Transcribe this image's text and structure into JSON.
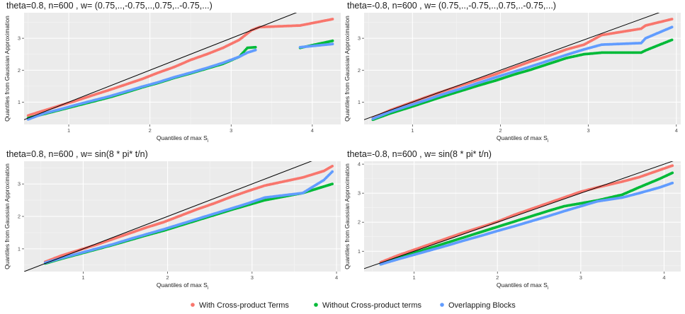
{
  "legend": {
    "entries": [
      {
        "label": "With Cross-product Terms",
        "color": "#F8766D"
      },
      {
        "label": "Without Cross-product terms",
        "color": "#00BA38"
      },
      {
        "label": "Overlapping Blocks",
        "color": "#619CFF"
      }
    ],
    "position": "bottom"
  },
  "chart_data": [
    {
      "type": "scatter",
      "title": "theta=0.8, n=600 , w= (0.75,..,-0.75,..,0.75,..-0.75,...)",
      "xlabel_main": "Quantiles of max S",
      "xlabel_sub": "i",
      "ylabel": "Quantiles from Gaussian Approximation",
      "xlim": [
        0.45,
        4.35
      ],
      "ylim": [
        0.3,
        3.8
      ],
      "xticks": [
        1,
        2,
        3,
        4
      ],
      "yticks": [
        1,
        2,
        3
      ],
      "grid": true,
      "reference_line": "y = x",
      "series": [
        {
          "name": "With Cross-product Terms",
          "color": "#F8766D",
          "x": [
            0.5,
            0.7,
            0.9,
            1.1,
            1.3,
            1.5,
            1.7,
            1.9,
            2.1,
            2.3,
            2.5,
            2.7,
            2.9,
            3.1,
            3.25,
            3.35,
            3.85,
            4.25
          ],
          "y": [
            0.58,
            0.74,
            0.9,
            1.05,
            1.22,
            1.38,
            1.55,
            1.72,
            1.92,
            2.1,
            2.32,
            2.5,
            2.7,
            2.95,
            3.25,
            3.35,
            3.4,
            3.6
          ]
        },
        {
          "name": "Without Cross-product terms",
          "color": "#00BA38",
          "x": [
            0.5,
            0.7,
            0.9,
            1.1,
            1.3,
            1.5,
            1.7,
            1.9,
            2.1,
            2.3,
            2.5,
            2.7,
            2.9,
            3.1,
            3.2,
            3.3,
            3.85,
            4.25
          ],
          "y": [
            0.5,
            0.63,
            0.76,
            0.89,
            1.02,
            1.15,
            1.3,
            1.46,
            1.6,
            1.76,
            1.9,
            2.05,
            2.2,
            2.42,
            2.7,
            2.72,
            2.7,
            2.92
          ]
        },
        {
          "name": "Overlapping Blocks",
          "color": "#619CFF",
          "x": [
            0.5,
            0.7,
            0.9,
            1.1,
            1.3,
            1.5,
            1.7,
            1.9,
            2.1,
            2.3,
            2.5,
            2.7,
            2.9,
            3.1,
            3.2,
            3.3,
            3.85,
            4.25
          ],
          "y": [
            0.46,
            0.65,
            0.78,
            0.92,
            1.05,
            1.18,
            1.33,
            1.48,
            1.62,
            1.78,
            1.92,
            2.07,
            2.23,
            2.42,
            2.55,
            2.63,
            2.72,
            2.82
          ]
        }
      ]
    },
    {
      "type": "scatter",
      "title": "theta=-0.8, n=600 , w= (0.75,..,-0.75,..,0.75,..-0.75,...)",
      "xlabel_main": "Quantiles of max S",
      "xlabel_sub": "i",
      "ylabel": "Quantiles from Gaussian Approximation",
      "xlim": [
        0.45,
        4.05
      ],
      "ylim": [
        0.3,
        3.8
      ],
      "xticks": [
        1,
        2,
        3,
        4
      ],
      "yticks": [
        1,
        2,
        3
      ],
      "grid": true,
      "reference_line": "y = x",
      "series": [
        {
          "name": "With Cross-product Terms",
          "color": "#F8766D",
          "x": [
            0.55,
            0.75,
            0.95,
            1.15,
            1.35,
            1.55,
            1.75,
            1.95,
            2.15,
            2.35,
            2.55,
            2.75,
            2.95,
            3.15,
            3.6,
            3.65,
            3.95
          ],
          "y": [
            0.5,
            0.75,
            0.95,
            1.15,
            1.34,
            1.52,
            1.7,
            1.88,
            2.08,
            2.28,
            2.45,
            2.65,
            2.8,
            3.1,
            3.3,
            3.4,
            3.6
          ]
        },
        {
          "name": "Without Cross-product terms",
          "color": "#00BA38",
          "x": [
            0.55,
            0.75,
            0.95,
            1.15,
            1.35,
            1.55,
            1.75,
            1.95,
            2.15,
            2.35,
            2.55,
            2.75,
            2.95,
            3.15,
            3.6,
            3.65,
            3.95
          ],
          "y": [
            0.45,
            0.65,
            0.82,
            1.0,
            1.18,
            1.35,
            1.52,
            1.68,
            1.86,
            2.02,
            2.2,
            2.38,
            2.5,
            2.55,
            2.55,
            2.62,
            2.95
          ]
        },
        {
          "name": "Overlapping Blocks",
          "color": "#619CFF",
          "x": [
            0.55,
            0.75,
            0.95,
            1.15,
            1.35,
            1.55,
            1.75,
            1.95,
            2.15,
            2.35,
            2.55,
            2.75,
            2.95,
            3.15,
            3.6,
            3.65,
            3.95
          ],
          "y": [
            0.48,
            0.7,
            0.88,
            1.06,
            1.25,
            1.42,
            1.6,
            1.78,
            1.95,
            2.12,
            2.3,
            2.48,
            2.65,
            2.8,
            2.85,
            3.0,
            3.35
          ]
        }
      ]
    },
    {
      "type": "scatter",
      "title": "theta=0.8, n=600 , w= sin(8 * pi* t/n)",
      "xlabel_main": "Quantiles of max S",
      "xlabel_sub": "i",
      "ylabel": "Quantiles from Gaussian Approximation",
      "xlim": [
        0.3,
        4.05
      ],
      "ylim": [
        0.3,
        3.7
      ],
      "xticks": [
        1,
        2,
        3,
        4
      ],
      "yticks": [
        1,
        2,
        3
      ],
      "grid": true,
      "reference_line": "y = x",
      "series": [
        {
          "name": "With Cross-product Terms",
          "color": "#F8766D",
          "x": [
            0.55,
            0.75,
            0.95,
            1.15,
            1.35,
            1.55,
            1.75,
            1.95,
            2.15,
            2.35,
            2.55,
            2.75,
            2.95,
            3.15,
            3.6,
            3.85,
            3.95
          ],
          "y": [
            0.6,
            0.8,
            0.96,
            1.12,
            1.3,
            1.48,
            1.66,
            1.82,
            2.02,
            2.22,
            2.4,
            2.6,
            2.78,
            2.95,
            3.2,
            3.4,
            3.55
          ]
        },
        {
          "name": "Without Cross-product terms",
          "color": "#00BA38",
          "x": [
            0.55,
            0.75,
            0.95,
            1.15,
            1.35,
            1.55,
            1.75,
            1.95,
            2.15,
            2.35,
            2.55,
            2.75,
            2.95,
            3.15,
            3.6,
            3.85,
            3.95
          ],
          "y": [
            0.55,
            0.7,
            0.84,
            0.98,
            1.12,
            1.27,
            1.42,
            1.56,
            1.72,
            1.88,
            2.04,
            2.2,
            2.35,
            2.5,
            2.72,
            2.92,
            3.0
          ]
        },
        {
          "name": "Overlapping Blocks",
          "color": "#619CFF",
          "x": [
            0.55,
            0.75,
            0.95,
            1.15,
            1.35,
            1.55,
            1.75,
            1.95,
            2.15,
            2.35,
            2.55,
            2.75,
            2.95,
            3.15,
            3.6,
            3.85,
            3.95
          ],
          "y": [
            0.57,
            0.72,
            0.86,
            1.0,
            1.14,
            1.3,
            1.45,
            1.6,
            1.76,
            1.92,
            2.08,
            2.24,
            2.4,
            2.58,
            2.72,
            3.12,
            3.38
          ]
        }
      ]
    },
    {
      "type": "scatter",
      "title": "theta=-0.8, n=600 , w= sin(8 * pi* t/n)",
      "xlabel_main": "Quantiles of max S",
      "xlabel_sub": "i",
      "ylabel": "Quantiles from Gaussian Approximation",
      "xlim": [
        0.4,
        4.2
      ],
      "ylim": [
        0.3,
        4.1
      ],
      "xticks": [
        1,
        2,
        3,
        4
      ],
      "yticks": [
        1,
        2,
        3,
        4
      ],
      "grid": true,
      "reference_line": "y = x",
      "series": [
        {
          "name": "With Cross-product Terms",
          "color": "#F8766D",
          "x": [
            0.6,
            0.8,
            1.0,
            1.2,
            1.4,
            1.6,
            1.8,
            2.0,
            2.2,
            2.4,
            2.6,
            2.8,
            3.0,
            3.2,
            3.5,
            3.7,
            3.95,
            4.1
          ],
          "y": [
            0.62,
            0.85,
            1.05,
            1.25,
            1.45,
            1.65,
            1.83,
            2.02,
            2.25,
            2.45,
            2.65,
            2.85,
            3.05,
            3.2,
            3.4,
            3.55,
            3.8,
            3.95
          ]
        },
        {
          "name": "Without Cross-product terms",
          "color": "#00BA38",
          "x": [
            0.6,
            0.8,
            1.0,
            1.2,
            1.4,
            1.6,
            1.8,
            2.0,
            2.2,
            2.4,
            2.6,
            2.8,
            3.0,
            3.2,
            3.5,
            3.7,
            3.95,
            4.1
          ],
          "y": [
            0.55,
            0.76,
            0.94,
            1.12,
            1.3,
            1.48,
            1.66,
            1.84,
            2.02,
            2.2,
            2.38,
            2.55,
            2.65,
            2.75,
            2.95,
            3.2,
            3.5,
            3.7
          ]
        },
        {
          "name": "Overlapping Blocks",
          "color": "#619CFF",
          "x": [
            0.6,
            0.8,
            1.0,
            1.2,
            1.4,
            1.6,
            1.8,
            2.0,
            2.2,
            2.4,
            2.6,
            2.8,
            3.0,
            3.2,
            3.5,
            3.7,
            3.95,
            4.1
          ],
          "y": [
            0.55,
            0.72,
            0.88,
            1.04,
            1.2,
            1.37,
            1.53,
            1.7,
            1.86,
            2.03,
            2.2,
            2.38,
            2.55,
            2.72,
            2.85,
            3.0,
            3.2,
            3.35
          ]
        }
      ]
    }
  ]
}
